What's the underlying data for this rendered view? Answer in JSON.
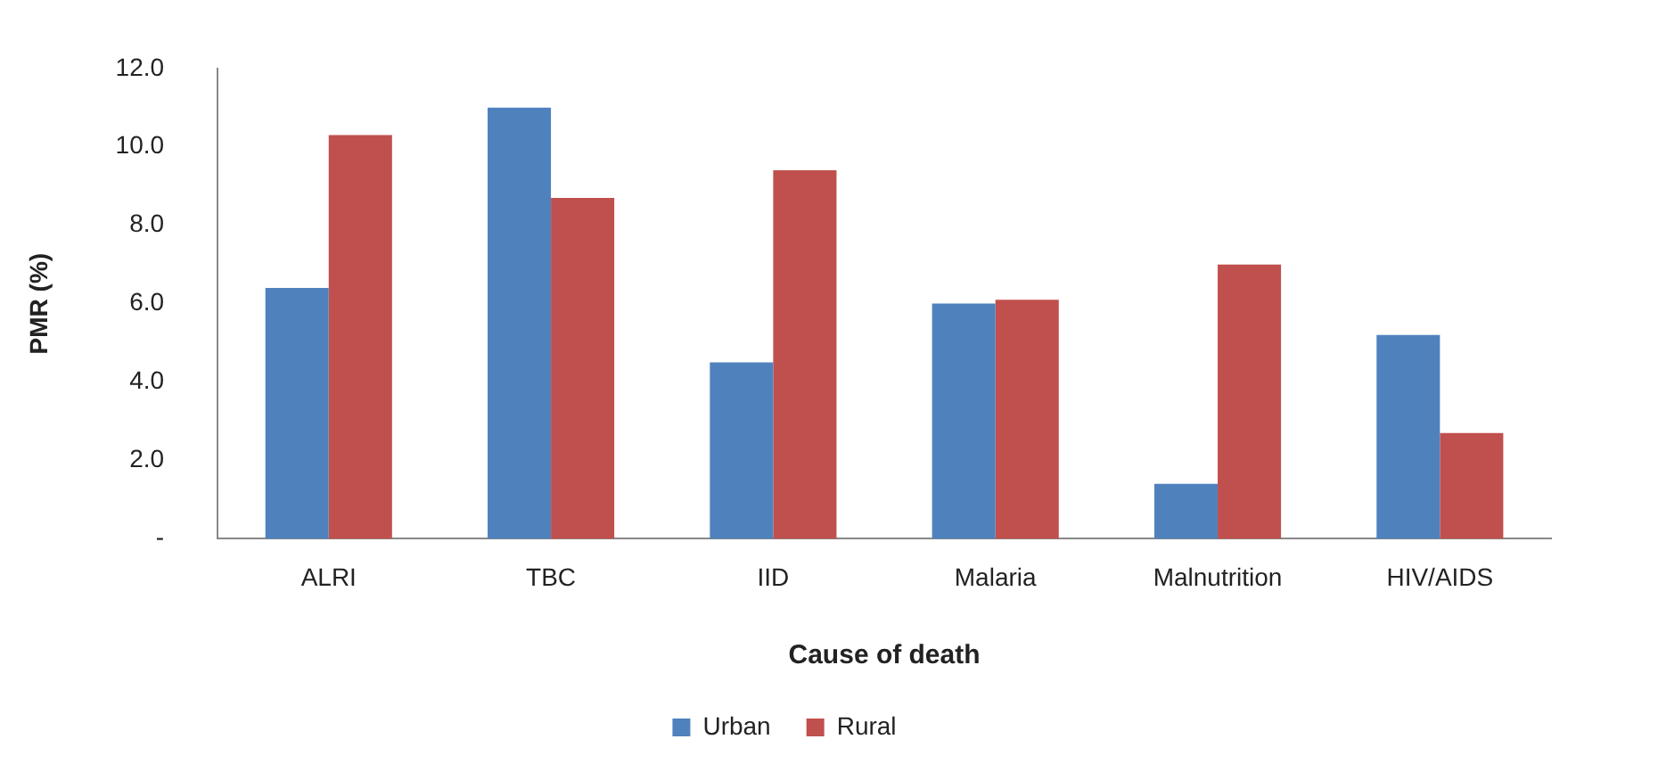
{
  "chart_data": {
    "type": "bar",
    "xlabel": "Cause of death",
    "ylabel": "PMR (%)",
    "categories": [
      "ALRI",
      "TBC",
      "IID",
      "Malaria",
      "Malnutrition",
      "HIV/AIDS"
    ],
    "series": [
      {
        "name": "Urban",
        "color": "#4f81bd",
        "values": [
          6.4,
          11.0,
          4.5,
          6.0,
          1.4,
          5.2
        ]
      },
      {
        "name": "Rural",
        "color": "#c0504d",
        "values": [
          10.3,
          8.7,
          9.4,
          6.1,
          7.0,
          2.7
        ]
      }
    ],
    "ylim": [
      0,
      12
    ],
    "yticks": [
      {
        "value": 0,
        "label": "-"
      },
      {
        "value": 2,
        "label": "2.0"
      },
      {
        "value": 4,
        "label": "4.0"
      },
      {
        "value": 6,
        "label": "6.0"
      },
      {
        "value": 8,
        "label": "8.0"
      },
      {
        "value": 10,
        "label": "10.0"
      },
      {
        "value": 12,
        "label": "12.0"
      }
    ],
    "grid": false,
    "legend": "bottom"
  }
}
